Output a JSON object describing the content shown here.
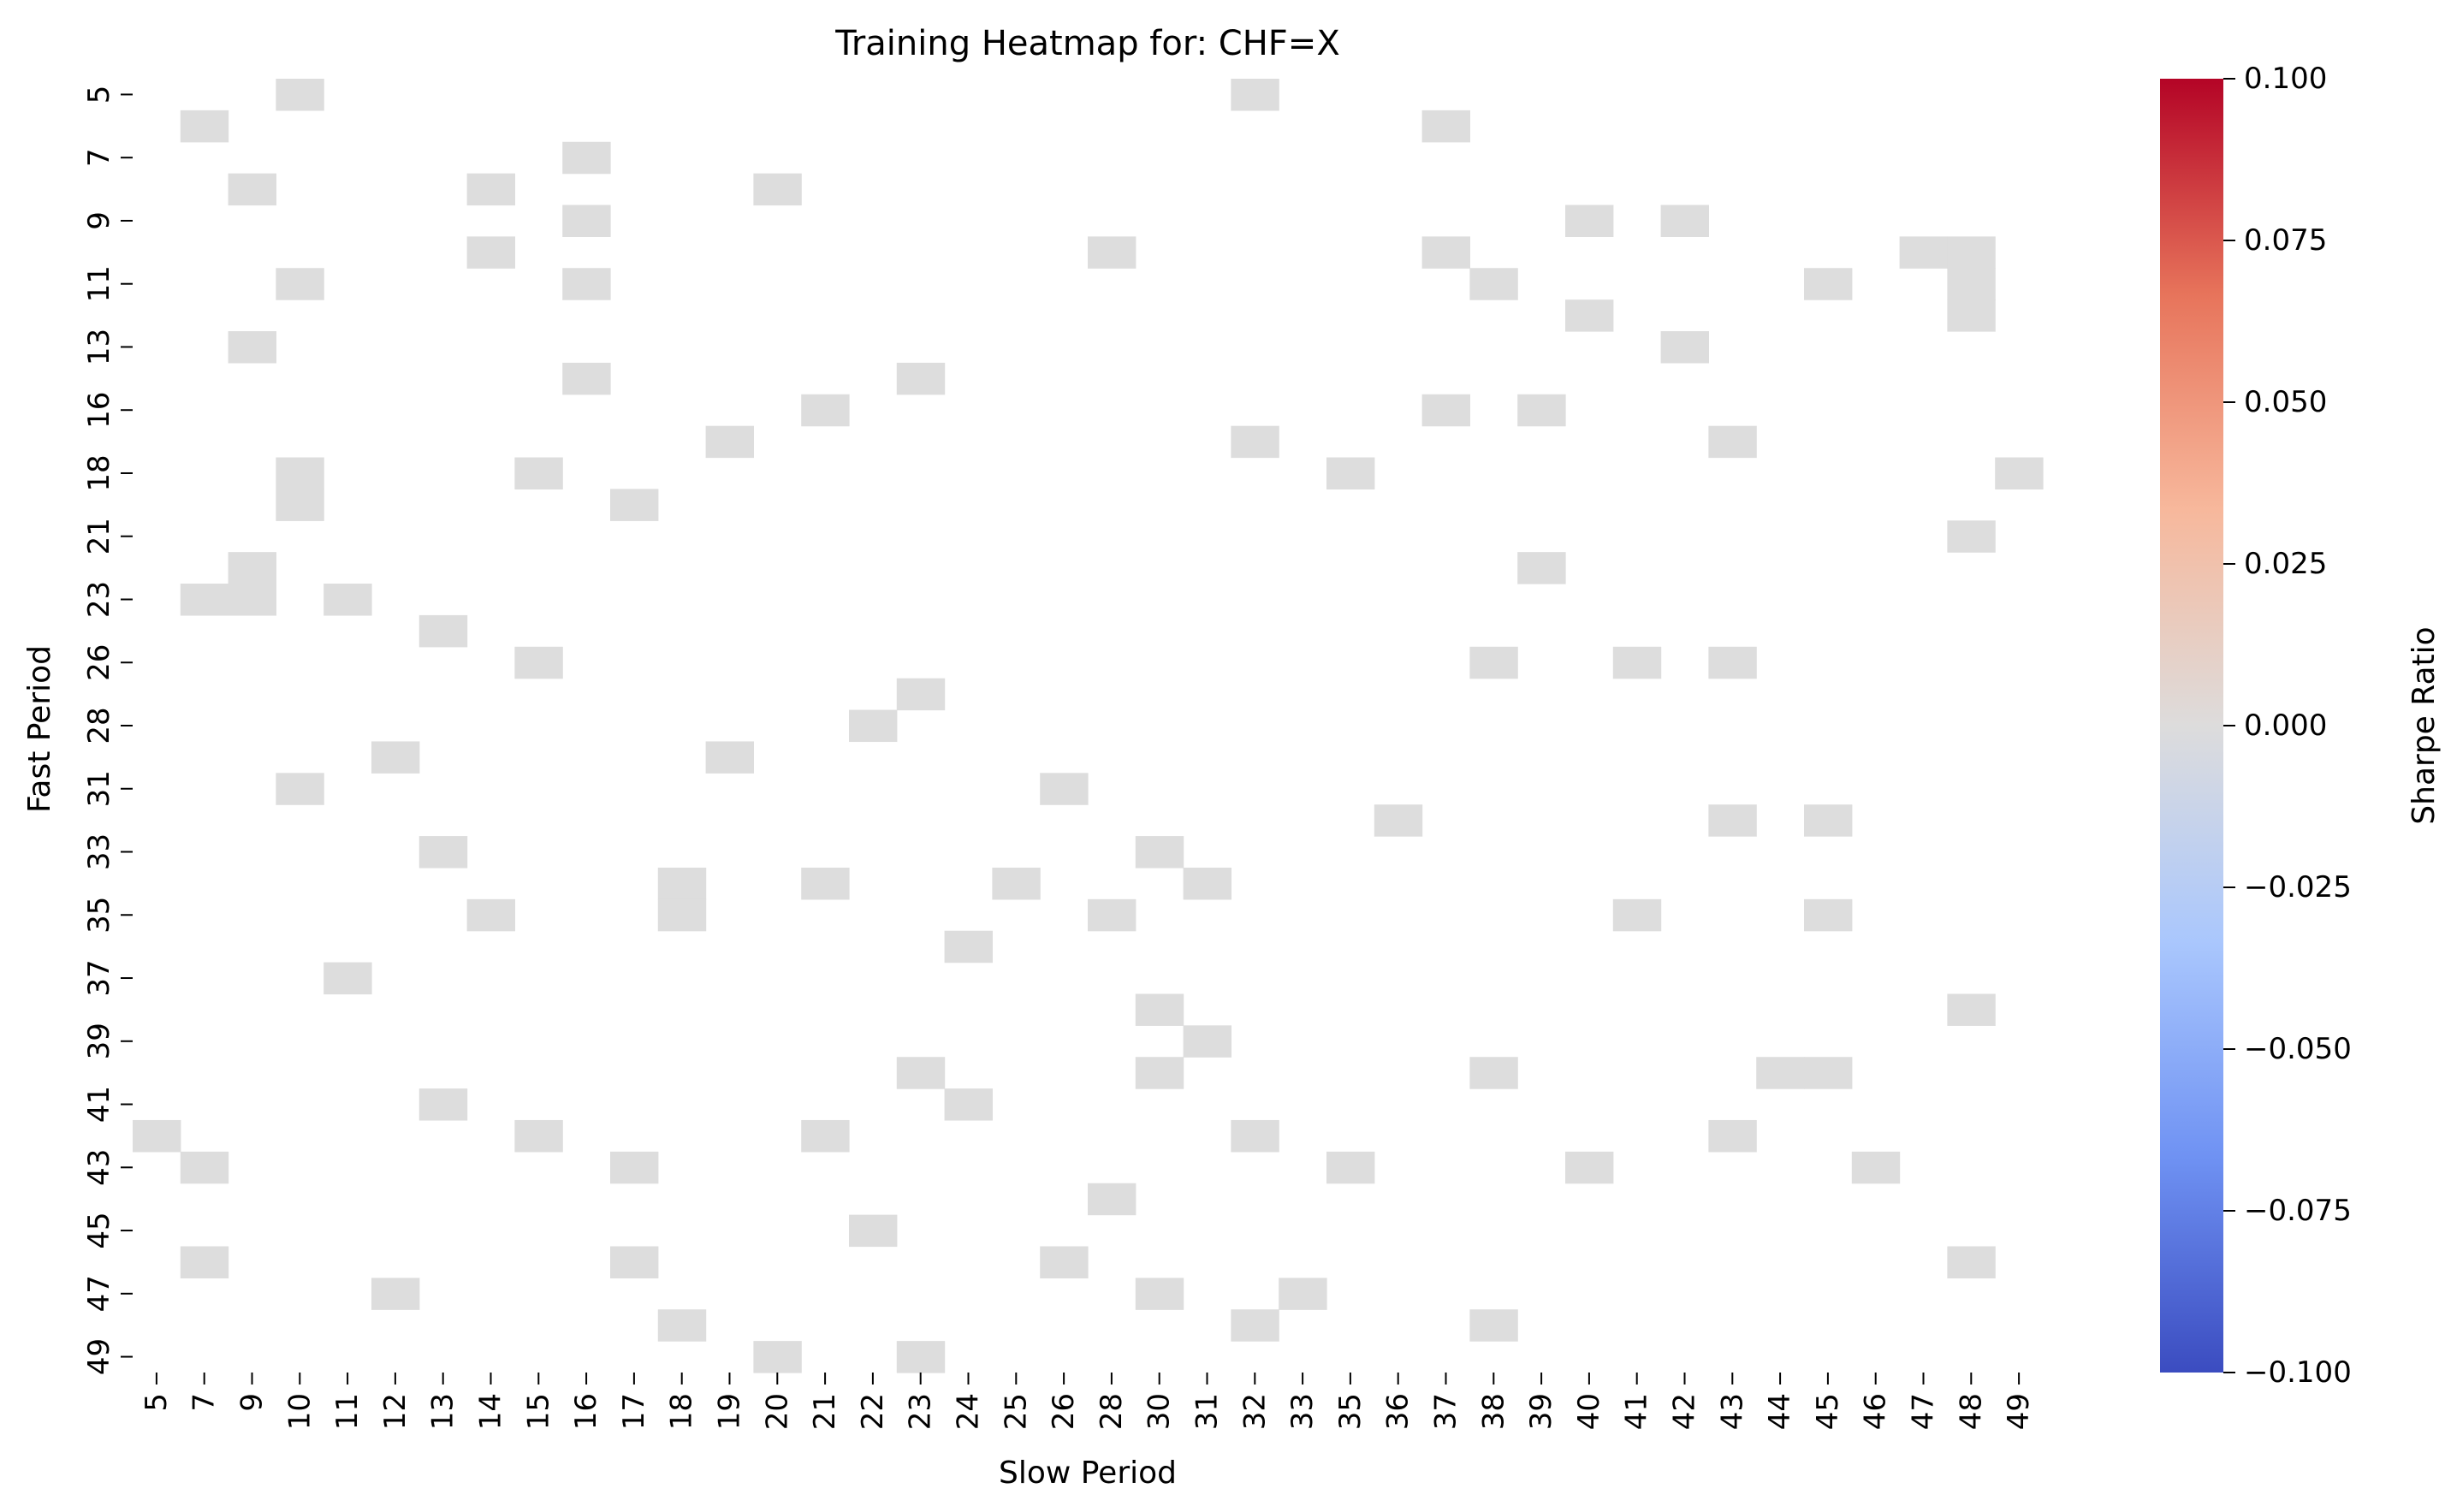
{
  "chart_data": {
    "type": "heatmap",
    "title": "Training Heatmap for: CHF=X",
    "xlabel": "Slow Period",
    "ylabel": "Fast Period",
    "x_tick_labels": [
      "5",
      "7",
      "9",
      "10",
      "11",
      "12",
      "13",
      "14",
      "15",
      "16",
      "17",
      "18",
      "19",
      "20",
      "21",
      "22",
      "23",
      "24",
      "25",
      "26",
      "28",
      "30",
      "31",
      "32",
      "33",
      "35",
      "36",
      "37",
      "38",
      "39",
      "40",
      "41",
      "42",
      "43",
      "44",
      "45",
      "46",
      "47",
      "48",
      "49"
    ],
    "y_tick_labels": [
      "5",
      "7",
      "9",
      "11",
      "13",
      "16",
      "18",
      "21",
      "23",
      "26",
      "28",
      "31",
      "33",
      "35",
      "37",
      "39",
      "41",
      "43",
      "45",
      "47",
      "49"
    ],
    "n_columns": 40,
    "n_rows": 41,
    "cell_value": 0.0,
    "cell_color": "#dddddd",
    "cells": [
      [
        0,
        3
      ],
      [
        0,
        23
      ],
      [
        1,
        1
      ],
      [
        1,
        27
      ],
      [
        2,
        9
      ],
      [
        3,
        2
      ],
      [
        3,
        7
      ],
      [
        3,
        13
      ],
      [
        4,
        9
      ],
      [
        4,
        30
      ],
      [
        4,
        32
      ],
      [
        5,
        7
      ],
      [
        5,
        20
      ],
      [
        5,
        27
      ],
      [
        5,
        37
      ],
      [
        5,
        38
      ],
      [
        6,
        3
      ],
      [
        6,
        9
      ],
      [
        6,
        28
      ],
      [
        6,
        35
      ],
      [
        6,
        38
      ],
      [
        7,
        30
      ],
      [
        7,
        38
      ],
      [
        8,
        2
      ],
      [
        8,
        32
      ],
      [
        9,
        9
      ],
      [
        9,
        16
      ],
      [
        10,
        14
      ],
      [
        10,
        27
      ],
      [
        10,
        29
      ],
      [
        11,
        12
      ],
      [
        11,
        23
      ],
      [
        11,
        33
      ],
      [
        12,
        3
      ],
      [
        12,
        8
      ],
      [
        12,
        25
      ],
      [
        12,
        39
      ],
      [
        13,
        3
      ],
      [
        13,
        10
      ],
      [
        14,
        38
      ],
      [
        15,
        2
      ],
      [
        15,
        29
      ],
      [
        16,
        1
      ],
      [
        16,
        2
      ],
      [
        16,
        4
      ],
      [
        17,
        6
      ],
      [
        18,
        8
      ],
      [
        18,
        28
      ],
      [
        18,
        31
      ],
      [
        18,
        33
      ],
      [
        19,
        16
      ],
      [
        20,
        15
      ],
      [
        21,
        5
      ],
      [
        21,
        12
      ],
      [
        22,
        3
      ],
      [
        22,
        19
      ],
      [
        23,
        26
      ],
      [
        23,
        33
      ],
      [
        23,
        35
      ],
      [
        24,
        6
      ],
      [
        24,
        21
      ],
      [
        25,
        11
      ],
      [
        25,
        14
      ],
      [
        25,
        18
      ],
      [
        25,
        22
      ],
      [
        26,
        7
      ],
      [
        26,
        11
      ],
      [
        26,
        20
      ],
      [
        26,
        31
      ],
      [
        26,
        35
      ],
      [
        27,
        17
      ],
      [
        28,
        4
      ],
      [
        29,
        21
      ],
      [
        29,
        38
      ],
      [
        30,
        22
      ],
      [
        31,
        16
      ],
      [
        31,
        21
      ],
      [
        31,
        28
      ],
      [
        31,
        34
      ],
      [
        31,
        35
      ],
      [
        32,
        6
      ],
      [
        32,
        17
      ],
      [
        33,
        0
      ],
      [
        33,
        8
      ],
      [
        33,
        14
      ],
      [
        33,
        23
      ],
      [
        33,
        33
      ],
      [
        34,
        1
      ],
      [
        34,
        10
      ],
      [
        34,
        25
      ],
      [
        34,
        30
      ],
      [
        34,
        36
      ],
      [
        35,
        20
      ],
      [
        36,
        15
      ],
      [
        37,
        1
      ],
      [
        37,
        10
      ],
      [
        37,
        19
      ],
      [
        37,
        38
      ],
      [
        38,
        5
      ],
      [
        38,
        21
      ],
      [
        38,
        24
      ],
      [
        39,
        11
      ],
      [
        39,
        23
      ],
      [
        39,
        28
      ],
      [
        40,
        13
      ],
      [
        40,
        16
      ]
    ],
    "colorbar": {
      "label": "Sharpe Ratio",
      "min": -0.1,
      "max": 0.1,
      "colormap": "coolwarm",
      "tick_values": [
        0.1,
        0.075,
        0.05,
        0.025,
        0.0,
        -0.025,
        -0.05,
        -0.075,
        -0.1
      ],
      "tick_labels": [
        "0.100",
        "0.075",
        "0.050",
        "0.025",
        "0.000",
        "−0.025",
        "−0.050",
        "−0.075",
        "−0.100"
      ],
      "colors": [
        "#3b4cc0",
        "#6f92f3",
        "#aac7fd",
        "#dddcdc",
        "#f7b89c",
        "#e7745b",
        "#b40426"
      ]
    },
    "grid": false,
    "legend": "colorbar-right"
  }
}
